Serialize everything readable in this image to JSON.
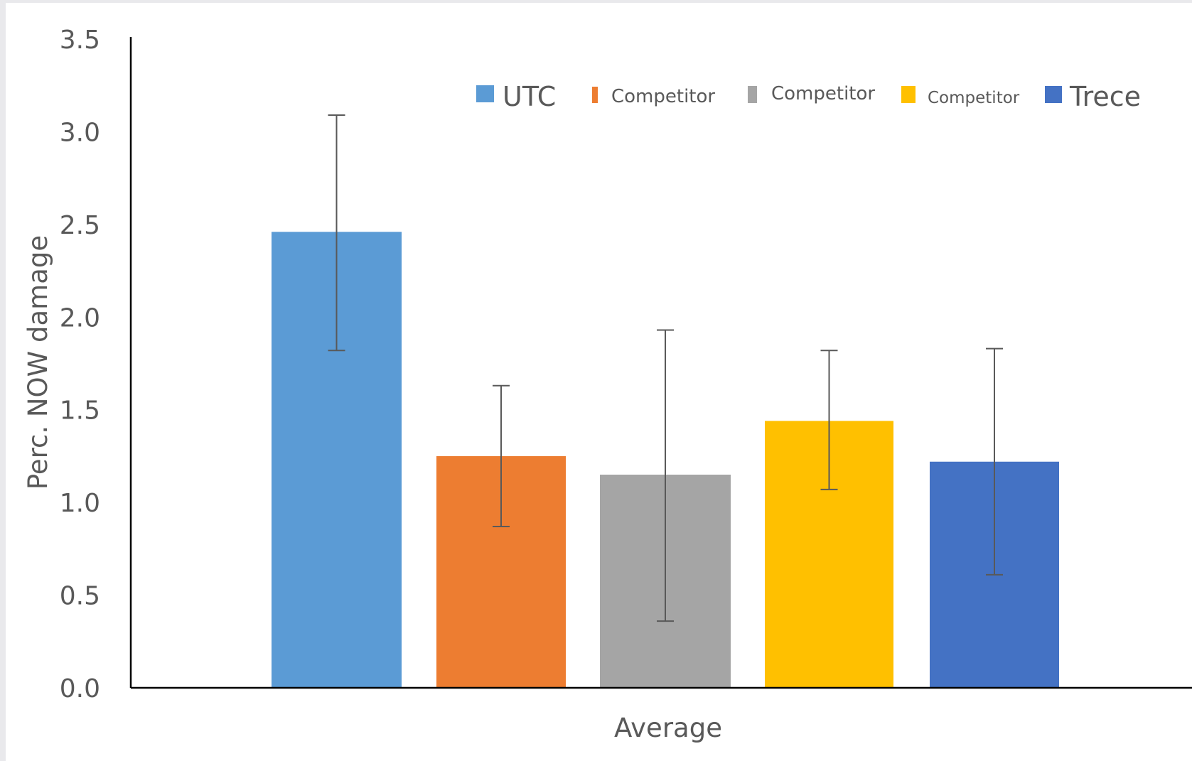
{
  "chart_data": {
    "type": "bar",
    "categories": [
      "Average"
    ],
    "series": [
      {
        "name": "UTC",
        "values": [
          2.46
        ],
        "error_low": [
          1.82
        ],
        "error_high": [
          3.09
        ],
        "color": "#5B9BD5"
      },
      {
        "name": "Competitor",
        "values": [
          1.25
        ],
        "error_low": [
          0.87
        ],
        "error_high": [
          1.63
        ],
        "color": "#ED7D31"
      },
      {
        "name": "Competitor",
        "values": [
          1.15
        ],
        "error_low": [
          0.36
        ],
        "error_high": [
          1.93
        ],
        "color": "#A5A5A5"
      },
      {
        "name": "Competitor",
        "values": [
          1.44
        ],
        "error_low": [
          1.07
        ],
        "error_high": [
          1.82
        ],
        "color": "#FFC000"
      },
      {
        "name": "Trece",
        "values": [
          1.22
        ],
        "error_low": [
          0.61
        ],
        "error_high": [
          1.83
        ],
        "color": "#4472C4"
      }
    ],
    "xlabel": "Average",
    "ylabel": "Perc. NOW damage",
    "ylim": [
      0,
      3.5
    ],
    "yticks": [
      "0.0",
      "0.5",
      "1.0",
      "1.5",
      "2.0",
      "2.5",
      "3.0",
      "3.5"
    ],
    "legend_position": "top-right",
    "grid": false
  }
}
